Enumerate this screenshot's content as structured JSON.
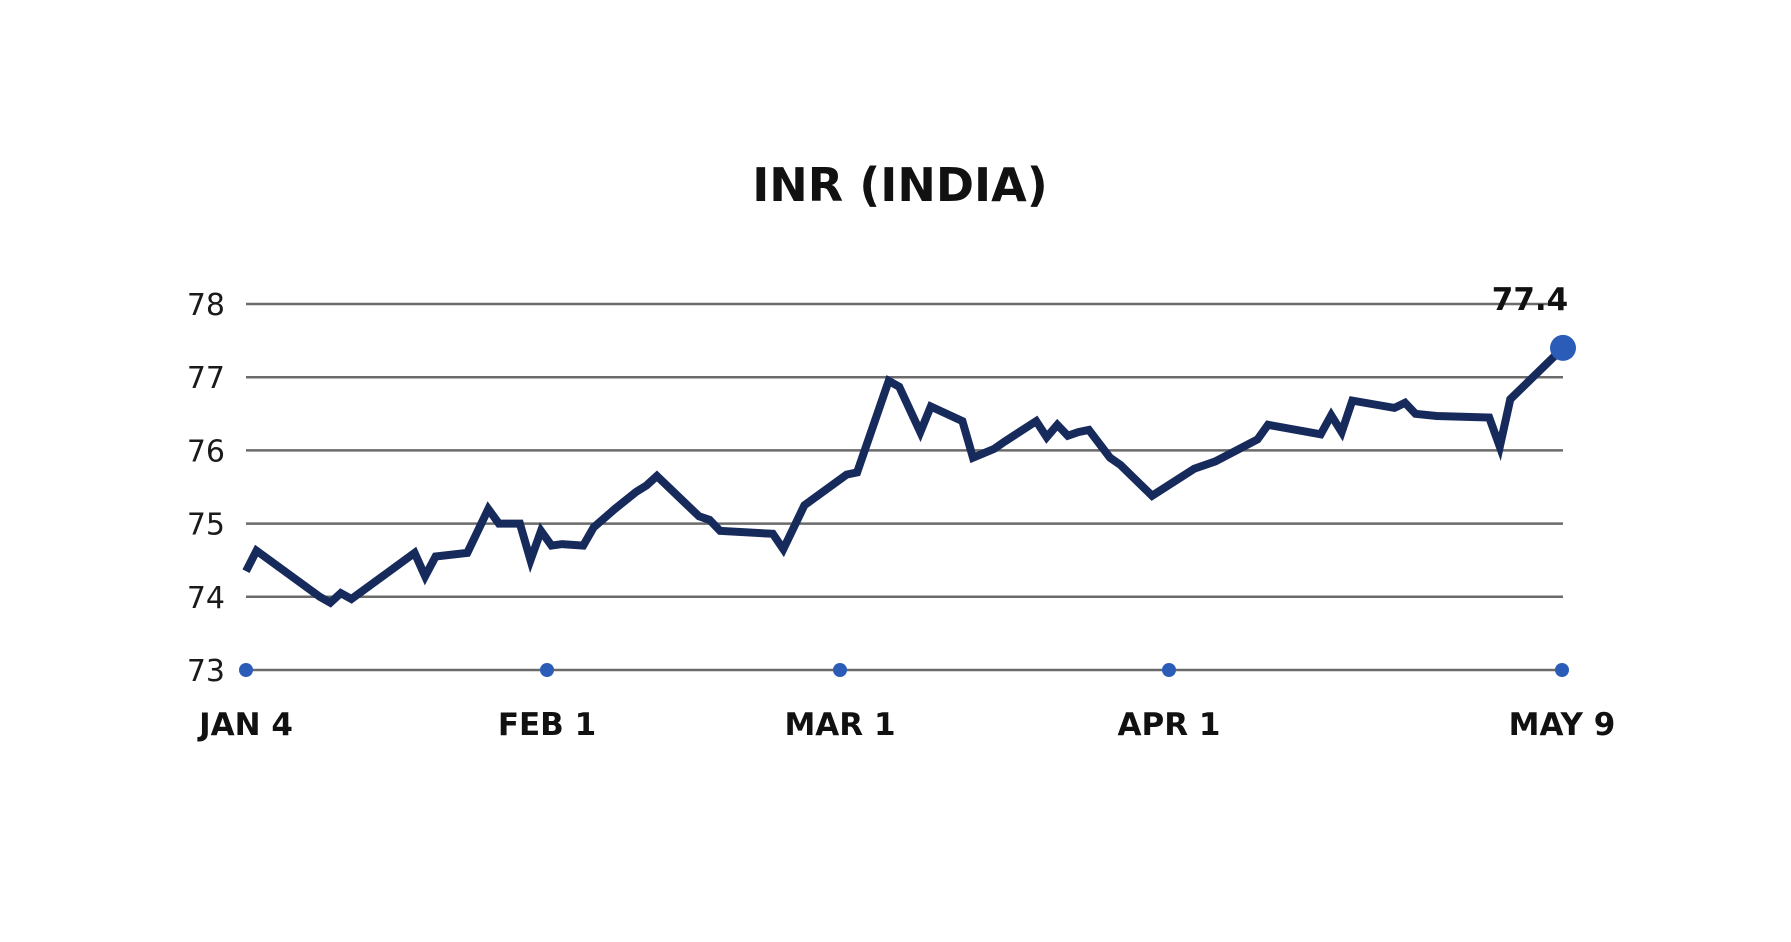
{
  "chart_data": {
    "type": "line",
    "title": "INR (INDIA)",
    "xlabel": "",
    "ylabel": "",
    "ylim": [
      73,
      78
    ],
    "yticks": [
      "73",
      "74",
      "75",
      "76",
      "77",
      "78"
    ],
    "xticks": [
      "JAN 4",
      "FEB 1",
      "MAR 1",
      "APR 1",
      "MAY 9"
    ],
    "grid": true,
    "end_label": "77.4",
    "colors": {
      "line": "#172a5c",
      "marker": "#2a5cb8",
      "grid": "#6b6b6b"
    },
    "series": [
      {
        "x": [
          "2022-01-04",
          "2022-01-05",
          "2022-01-11",
          "2022-01-12",
          "2022-01-13",
          "2022-01-14",
          "2022-01-20",
          "2022-01-21",
          "2022-01-22",
          "2022-01-25",
          "2022-01-27",
          "2022-01-28",
          "2022-01-30",
          "2022-01-31",
          "2022-02-01",
          "2022-02-02",
          "2022-02-03",
          "2022-02-05",
          "2022-02-06",
          "2022-02-08",
          "2022-02-10",
          "2022-02-11",
          "2022-02-12",
          "2022-02-16",
          "2022-02-17",
          "2022-02-18",
          "2022-02-23",
          "2022-02-24",
          "2022-02-26",
          "2022-03-02",
          "2022-03-03",
          "2022-03-06",
          "2022-03-07",
          "2022-03-09",
          "2022-03-10",
          "2022-03-13",
          "2022-03-14",
          "2022-03-16",
          "2022-03-17",
          "2022-03-20",
          "2022-03-21",
          "2022-03-22",
          "2022-03-23",
          "2022-03-24",
          "2022-03-25",
          "2022-03-27",
          "2022-03-28",
          "2022-03-31",
          "2022-04-04",
          "2022-04-06",
          "2022-04-10",
          "2022-04-11",
          "2022-04-16",
          "2022-04-17",
          "2022-04-18",
          "2022-04-19",
          "2022-04-23",
          "2022-04-24",
          "2022-04-25",
          "2022-04-27",
          "2022-05-02",
          "2022-05-03",
          "2022-05-04",
          "2022-05-09"
        ],
        "y": [
          74.35,
          74.63,
          74.0,
          73.92,
          74.05,
          73.97,
          74.6,
          74.28,
          74.55,
          74.6,
          75.2,
          75.0,
          75.0,
          74.5,
          74.9,
          74.7,
          74.72,
          74.7,
          74.95,
          75.2,
          75.43,
          75.52,
          75.65,
          75.1,
          75.05,
          74.9,
          74.86,
          74.65,
          75.25,
          75.67,
          75.7,
          76.95,
          76.87,
          76.25,
          76.6,
          76.4,
          75.9,
          76.02,
          76.12,
          76.4,
          76.18,
          76.35,
          76.2,
          76.25,
          76.28,
          75.9,
          75.8,
          75.38,
          75.75,
          75.85,
          76.15,
          76.35,
          76.22,
          76.48,
          76.25,
          76.68,
          76.58,
          76.65,
          76.5,
          76.47,
          76.45,
          76.05,
          76.7,
          77.4
        ]
      }
    ]
  }
}
